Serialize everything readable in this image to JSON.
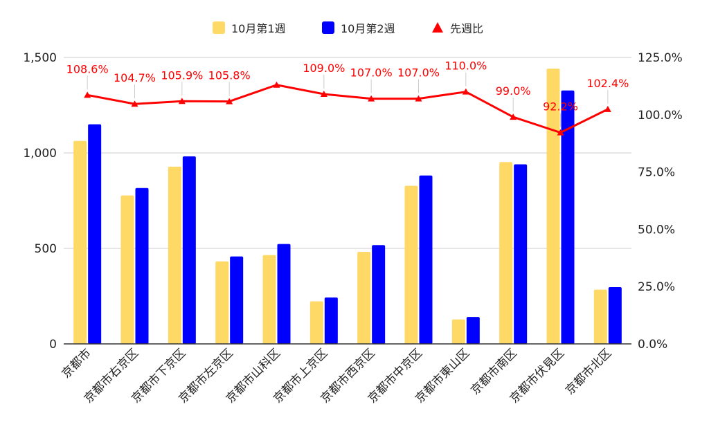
{
  "chart_data": {
    "type": "bar",
    "categories": [
      "京都市",
      "京都市右京区",
      "京都市下京区",
      "京都市左京区",
      "京都市山科区",
      "京都市上京区",
      "京都市西京区",
      "京都市中京区",
      "京都市東山区",
      "京都市南区",
      "京都市伏見区",
      "京都市北区"
    ],
    "series": [
      {
        "name": "10月第1週",
        "type": "bar",
        "axis": "left",
        "color": "#FFD966",
        "values": [
          1063,
          777,
          928,
          432,
          465,
          223,
          482,
          828,
          128,
          952,
          1441,
          284
        ]
      },
      {
        "name": "10月第2週",
        "type": "bar",
        "axis": "left",
        "color": "#0000FF",
        "values": [
          1150,
          816,
          982,
          458,
          523,
          243,
          517,
          882,
          141,
          940,
          1327,
          297
        ]
      },
      {
        "name": "先週比",
        "type": "line",
        "axis": "right",
        "color": "#FF0000",
        "values": [
          108.6,
          104.7,
          105.9,
          105.8,
          113.0,
          109.0,
          107.0,
          107.0,
          110.0,
          99.0,
          92.2,
          102.4
        ]
      }
    ],
    "ratio_labels": [
      "108.6%",
      "104.7%",
      "105.9%",
      "105.8%",
      "",
      "109.0%",
      "107.0%",
      "107.0%",
      "110.0%",
      "99.0%",
      "92.2%",
      "102.4%"
    ],
    "y_left": {
      "min": 0,
      "max": 1500,
      "ticks": [
        0,
        500,
        1000,
        1500
      ],
      "tick_labels": [
        "0",
        "500",
        "1,000",
        "1,500"
      ]
    },
    "y_right": {
      "min": 0,
      "max": 125,
      "ticks": [
        0,
        25,
        50,
        75,
        100,
        125
      ],
      "tick_labels": [
        "0.0%",
        "25.0%",
        "50.0%",
        "75.0%",
        "100.0%",
        "125.0%"
      ]
    },
    "grid": true,
    "legend_position": "top"
  }
}
